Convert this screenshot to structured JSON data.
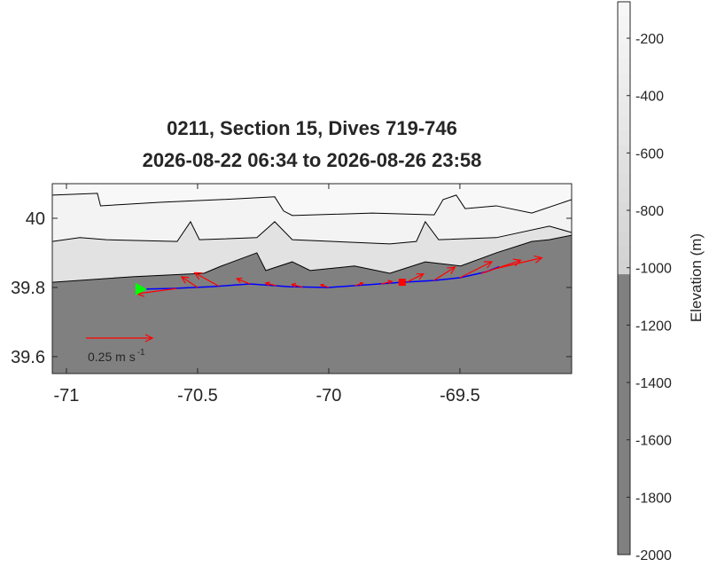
{
  "chart_data": {
    "type": "quiver",
    "title": "0211, Section 15, Dives 719-746",
    "subtitle": "2026-08-22 06:34 to 2026-08-26 23:58",
    "xlim": [
      -71.054,
      -69.074
    ],
    "ylim": [
      39.551,
      40.1
    ],
    "xticks": [
      -71,
      -70.5,
      -70,
      -69.5
    ],
    "yticks": [
      39.6,
      39.8,
      40
    ],
    "colorbar": {
      "label": "Elevation (m)",
      "lim": [
        -2000,
        -73
      ],
      "ticks": [
        -200,
        -400,
        -600,
        -800,
        -1000,
        -1200,
        -1400,
        -1600,
        -1800,
        -2000
      ]
    },
    "contours": [
      {
        "level": -200,
        "x": [
          -71.054,
          -70.882,
          -70.87,
          -70.645,
          -70.409,
          -70.206,
          -70.172,
          -70.139,
          -69.834,
          -69.598,
          -69.564,
          -69.514,
          -69.48,
          -69.361,
          -69.226,
          -69.074
        ],
        "y": [
          40.067,
          40.072,
          40.036,
          40.046,
          40.054,
          40.062,
          40.021,
          40.008,
          40.015,
          40.01,
          40.054,
          40.067,
          40.028,
          40.036,
          40.015,
          40.054
        ]
      },
      {
        "level": -600,
        "x": [
          -71.054,
          -70.949,
          -70.848,
          -70.578,
          -70.527,
          -70.493,
          -70.274,
          -70.206,
          -70.139,
          -69.767,
          -69.666,
          -69.632,
          -69.581,
          -69.361,
          -69.159,
          -69.074
        ],
        "y": [
          39.933,
          39.944,
          39.938,
          39.933,
          39.99,
          39.938,
          39.944,
          39.99,
          39.938,
          39.926,
          39.933,
          39.99,
          39.938,
          39.944,
          39.977,
          39.959
        ]
      },
      {
        "level": -1000,
        "x": [
          -71.054,
          -70.747,
          -70.476,
          -70.409,
          -70.274,
          -70.24,
          -70.139,
          -70.071,
          -69.902,
          -69.767,
          -69.632,
          -69.497,
          -69.361,
          -69.226,
          -69.159,
          -69.074
        ],
        "y": [
          39.815,
          39.831,
          39.841,
          39.862,
          39.9,
          39.849,
          39.874,
          39.849,
          39.862,
          39.841,
          39.874,
          39.862,
          39.9,
          39.933,
          39.938,
          39.951
        ]
      }
    ],
    "track": {
      "color": "#0000ff",
      "x": [
        -70.72,
        -70.6,
        -70.45,
        -70.3,
        -70.15,
        -70.0,
        -69.85,
        -69.72,
        -69.6,
        -69.5,
        -69.4,
        -69.35
      ],
      "y": [
        39.795,
        39.797,
        39.802,
        39.81,
        39.802,
        39.8,
        39.808,
        39.815,
        39.82,
        39.828,
        39.845,
        39.86
      ]
    },
    "start": {
      "x": -70.72,
      "y": 39.795,
      "color": "#00ff00"
    },
    "end": {
      "x": -69.72,
      "y": 39.815,
      "color": "#ff0000"
    },
    "currents": {
      "color": "#ff0000",
      "x": [
        -70.7,
        -70.58,
        -70.5,
        -70.42,
        -70.3,
        -70.2,
        -70.1,
        -70.0,
        -69.9,
        -69.8,
        -69.7,
        -69.6,
        -69.5,
        -69.42,
        -69.36
      ],
      "y": [
        39.795,
        39.797,
        39.8,
        39.804,
        39.81,
        39.805,
        39.801,
        39.8,
        39.805,
        39.81,
        39.816,
        39.82,
        39.828,
        39.84,
        39.855
      ],
      "u": [
        -0.02,
        -0.15,
        -0.06,
        -0.09,
        -0.05,
        -0.04,
        -0.04,
        -0.03,
        0.03,
        0.04,
        0.06,
        0.08,
        0.12,
        0.15,
        0.17
      ],
      "v": [
        -0.01,
        -0.02,
        0.04,
        0.05,
        0.02,
        0.01,
        0.01,
        0.01,
        0.01,
        0.01,
        0.03,
        0.05,
        0.06,
        0.05,
        0.04
      ]
    },
    "scale_arrow": {
      "value": 0.25,
      "label": "0.25 m s",
      "label_exponent": "-1"
    }
  }
}
